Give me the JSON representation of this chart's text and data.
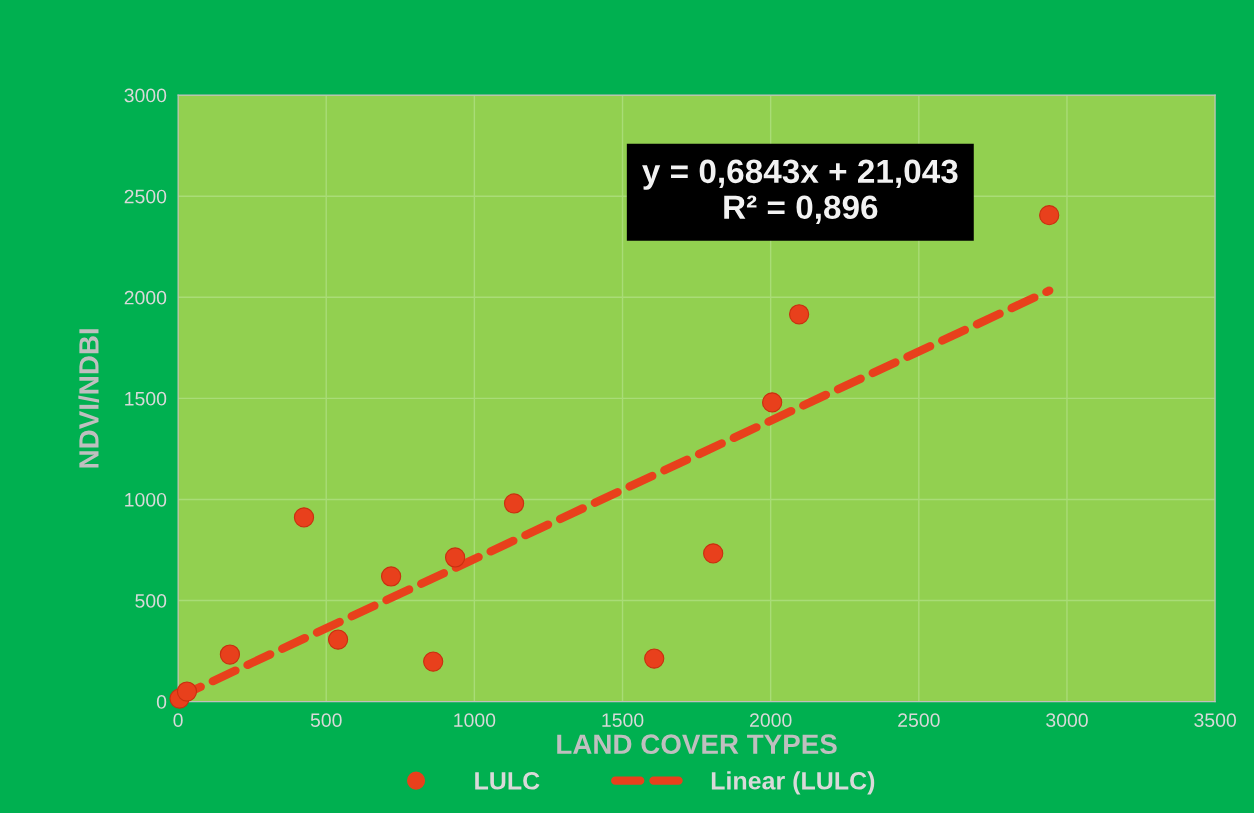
{
  "chart_data": {
    "type": "scatter",
    "xlabel": "LAND COVER TYPES",
    "ylabel": "NDVI/NDBI",
    "series": [
      {
        "name": "LULC",
        "color": "#e8401c",
        "x": [
          5,
          30,
          175,
          425,
          540,
          719,
          861,
          935,
          1134,
          1607,
          1806,
          2005,
          2096,
          2940
        ],
        "values": [
          15,
          50,
          233,
          911,
          307,
          619,
          198,
          713,
          980,
          213,
          733,
          1480,
          1916,
          2406
        ],
        "marker": "circle"
      },
      {
        "name": "Linear (LULC)",
        "type": "line",
        "color": "#e8401c",
        "x": [
          0,
          2940
        ],
        "values": [
          21,
          2033
        ],
        "line_style": "dashed",
        "marker": "none"
      }
    ],
    "annotations": [
      "y = 0,6843x + 21,043\nR² = 0,896"
    ],
    "xlim": [
      0,
      3500
    ],
    "xticks": [
      0,
      500,
      1000,
      1500,
      2000,
      2500,
      3000,
      3500
    ],
    "ylim": [
      0,
      3000
    ],
    "yticks": [
      0,
      500,
      1000,
      1500,
      2000,
      2500,
      3000
    ],
    "grid": true,
    "legend": "bottom"
  }
}
